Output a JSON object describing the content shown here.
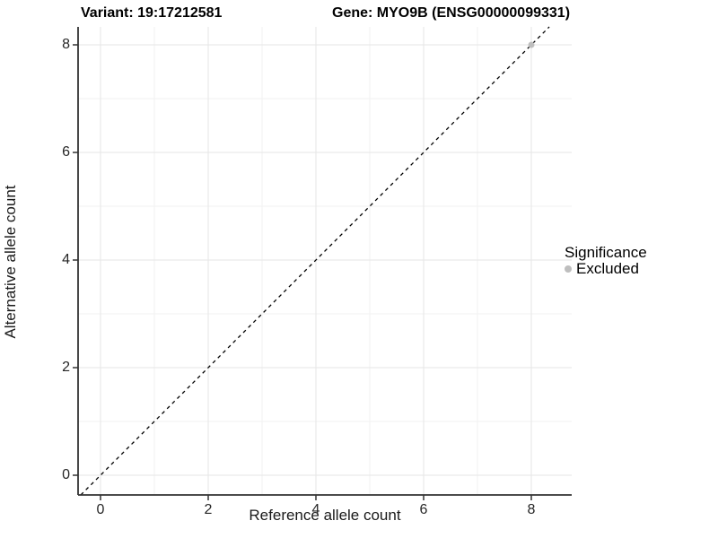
{
  "figure": {
    "title_variant": "Variant: 19:17212581",
    "title_gene": "Gene: MYO9B (ENSG00000099331)"
  },
  "chart_data": {
    "type": "scatter",
    "title_left": "Variant: 19:17212581",
    "title_right": "Gene: MYO9B (ENSG00000099331)",
    "xlabel": "Reference allele count",
    "ylabel": "Alternative allele count",
    "x_ticks": [
      0,
      2,
      4,
      6,
      8
    ],
    "y_ticks": [
      0,
      2,
      4,
      6,
      8
    ],
    "x_minor_ticks": [
      1,
      3,
      5,
      7
    ],
    "y_minor_ticks": [
      1,
      3,
      5,
      7
    ],
    "xlim": [
      -0.42,
      8.75
    ],
    "ylim": [
      -0.37,
      8.33
    ],
    "grid": "major and minor gridlines on, light gray, white panel",
    "identity_line": {
      "style": "dashed",
      "equation": "y = x",
      "color": "#000000"
    },
    "series": [
      {
        "name": "Excluded",
        "color": "#bebebe",
        "points": [
          {
            "x": 8,
            "y": 8
          }
        ]
      }
    ],
    "legend": {
      "title": "Significance",
      "position": "right",
      "entries": [
        {
          "label": "Excluded",
          "color": "#bebebe"
        }
      ]
    },
    "colors": {
      "grid_major": "#e5e5e5",
      "grid_minor": "#f2f2f2",
      "axis_line": "#333333",
      "point_excluded": "#bebebe",
      "text": "#262626"
    }
  }
}
